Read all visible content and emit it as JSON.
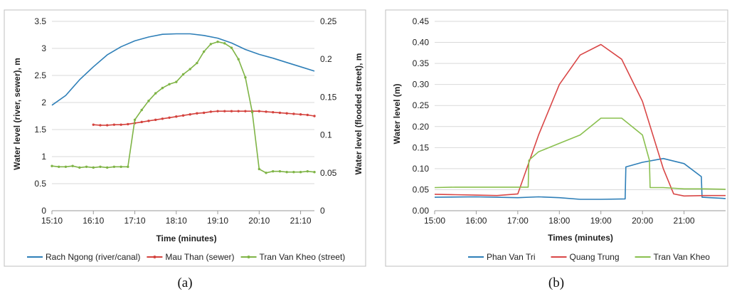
{
  "panels": [
    {
      "caption": "(a)",
      "chart_data": {
        "type": "line",
        "xlabel": "Time (minutes)",
        "ylabel": "Water level (river, sewer), m",
        "y2label": "Water level (flooded street), m",
        "x_ticks": [
          "15:10",
          "16:10",
          "17:10",
          "18:10",
          "19:10",
          "20:10",
          "21:10"
        ],
        "xlim": [
          "15:10",
          "21:30"
        ],
        "ylim": [
          0,
          3.5
        ],
        "y_ticks": [
          "0",
          "0.5",
          "1",
          "1.5",
          "2",
          "2.5",
          "3",
          "3.5"
        ],
        "y2lim": [
          0,
          0.25
        ],
        "y2_ticks": [
          "0",
          "0.05",
          "0.1",
          "0.15",
          "0.2",
          "0.25"
        ],
        "grid": "horizontal",
        "legend": "bottom",
        "series": [
          {
            "name": "Rach Ngong (river/canal)",
            "color": "#2e7fb8",
            "axis": "left",
            "marker": false,
            "x": [
              "15:10",
              "15:30",
              "15:50",
              "16:10",
              "16:30",
              "16:50",
              "17:10",
              "17:30",
              "17:50",
              "18:10",
              "18:30",
              "18:50",
              "19:10",
              "19:30",
              "19:50",
              "20:10",
              "20:30",
              "20:50",
              "21:10",
              "21:30"
            ],
            "y": [
              1.95,
              2.13,
              2.42,
              2.66,
              2.88,
              3.03,
              3.14,
              3.21,
              3.26,
              3.27,
              3.27,
              3.24,
              3.19,
              3.1,
              2.98,
              2.89,
              2.82,
              2.74,
              2.66,
              2.58
            ]
          },
          {
            "name": "Mau Than (sewer)",
            "color": "#d4423d",
            "axis": "left",
            "marker": true,
            "x": [
              "16:10",
              "16:20",
              "16:30",
              "16:40",
              "16:50",
              "17:00",
              "17:10",
              "17:20",
              "17:30",
              "17:40",
              "17:50",
              "18:00",
              "18:10",
              "18:20",
              "18:30",
              "18:40",
              "18:50",
              "19:00",
              "19:10",
              "19:20",
              "19:30",
              "19:40",
              "19:50",
              "20:00",
              "20:10",
              "20:20",
              "20:30",
              "20:40",
              "20:50",
              "21:00",
              "21:10",
              "21:20",
              "21:30"
            ],
            "y": [
              1.59,
              1.58,
              1.58,
              1.59,
              1.59,
              1.6,
              1.62,
              1.64,
              1.66,
              1.68,
              1.7,
              1.72,
              1.74,
              1.76,
              1.78,
              1.8,
              1.81,
              1.83,
              1.84,
              1.84,
              1.84,
              1.84,
              1.84,
              1.84,
              1.84,
              1.83,
              1.82,
              1.81,
              1.8,
              1.79,
              1.78,
              1.77,
              1.75
            ]
          },
          {
            "name": "Tran Van Kheo (street)",
            "color": "#7fb446",
            "axis": "right",
            "marker": true,
            "x": [
              "15:10",
              "15:20",
              "15:30",
              "15:40",
              "15:50",
              "16:00",
              "16:10",
              "16:20",
              "16:30",
              "16:40",
              "16:50",
              "17:00",
              "17:10",
              "17:20",
              "17:30",
              "17:40",
              "17:50",
              "18:00",
              "18:10",
              "18:20",
              "18:30",
              "18:40",
              "18:50",
              "19:00",
              "19:10",
              "19:20",
              "19:30",
              "19:40",
              "19:50",
              "20:00",
              "20:10",
              "20:20",
              "20:30",
              "20:40",
              "20:50",
              "21:00",
              "21:10",
              "21:20",
              "21:30"
            ],
            "y": [
              0.059,
              0.058,
              0.058,
              0.059,
              0.057,
              0.058,
              0.057,
              0.058,
              0.057,
              0.058,
              0.058,
              0.058,
              0.12,
              0.133,
              0.145,
              0.155,
              0.162,
              0.167,
              0.17,
              0.18,
              0.187,
              0.195,
              0.21,
              0.22,
              0.223,
              0.221,
              0.215,
              0.2,
              0.176,
              0.13,
              0.055,
              0.05,
              0.052,
              0.052,
              0.051,
              0.051,
              0.051,
              0.052,
              0.051
            ]
          }
        ]
      }
    },
    {
      "caption": "(b)",
      "chart_data": {
        "type": "line",
        "xlabel": "Times (minutes)",
        "ylabel": "Water level (m)",
        "x_ticks": [
          "15:00",
          "16:00",
          "17:00",
          "18:00",
          "19:00",
          "20:00",
          "21:00"
        ],
        "xlim": [
          "15:00",
          "22:00"
        ],
        "ylim": [
          0,
          0.45
        ],
        "y_ticks": [
          "0.00",
          "0.05",
          "0.10",
          "0.15",
          "0.20",
          "0.25",
          "0.30",
          "0.35",
          "0.40",
          "0.45"
        ],
        "grid": "horizontal",
        "legend": "bottom",
        "series": [
          {
            "name": "Phan Van Tri",
            "color": "#2e7fb8",
            "x": [
              "15:00",
              "16:00",
              "17:00",
              "17:30",
              "18:00",
              "18:30",
              "19:00",
              "19:35",
              "19:36",
              "20:00",
              "20:30",
              "21:00",
              "21:25",
              "21:26",
              "22:00"
            ],
            "y": [
              0.032,
              0.033,
              0.031,
              0.033,
              0.031,
              0.027,
              0.027,
              0.028,
              0.104,
              0.115,
              0.124,
              0.112,
              0.081,
              0.032,
              0.029
            ]
          },
          {
            "name": "Quang Trung",
            "color": "#d94646",
            "x": [
              "15:00",
              "15:30",
              "16:00",
              "16:30",
              "17:00",
              "17:30",
              "18:00",
              "18:30",
              "19:00",
              "19:30",
              "20:00",
              "20:30",
              "20:45",
              "21:00",
              "21:30",
              "22:00"
            ],
            "y": [
              0.039,
              0.038,
              0.037,
              0.036,
              0.04,
              0.18,
              0.3,
              0.37,
              0.395,
              0.36,
              0.26,
              0.1,
              0.04,
              0.035,
              0.036,
              0.036
            ]
          },
          {
            "name": "Tran Van Kheo",
            "color": "#8ac04f",
            "x": [
              "15:00",
              "15:30",
              "16:00",
              "16:30",
              "17:00",
              "17:15",
              "17:16",
              "17:30",
              "18:00",
              "18:30",
              "19:00",
              "19:30",
              "20:00",
              "20:10",
              "20:11",
              "20:30",
              "21:00",
              "21:30",
              "22:00"
            ],
            "y": [
              0.055,
              0.056,
              0.056,
              0.056,
              0.056,
              0.056,
              0.12,
              0.14,
              0.16,
              0.18,
              0.22,
              0.22,
              0.18,
              0.12,
              0.055,
              0.055,
              0.052,
              0.052,
              0.051
            ]
          }
        ]
      }
    }
  ]
}
